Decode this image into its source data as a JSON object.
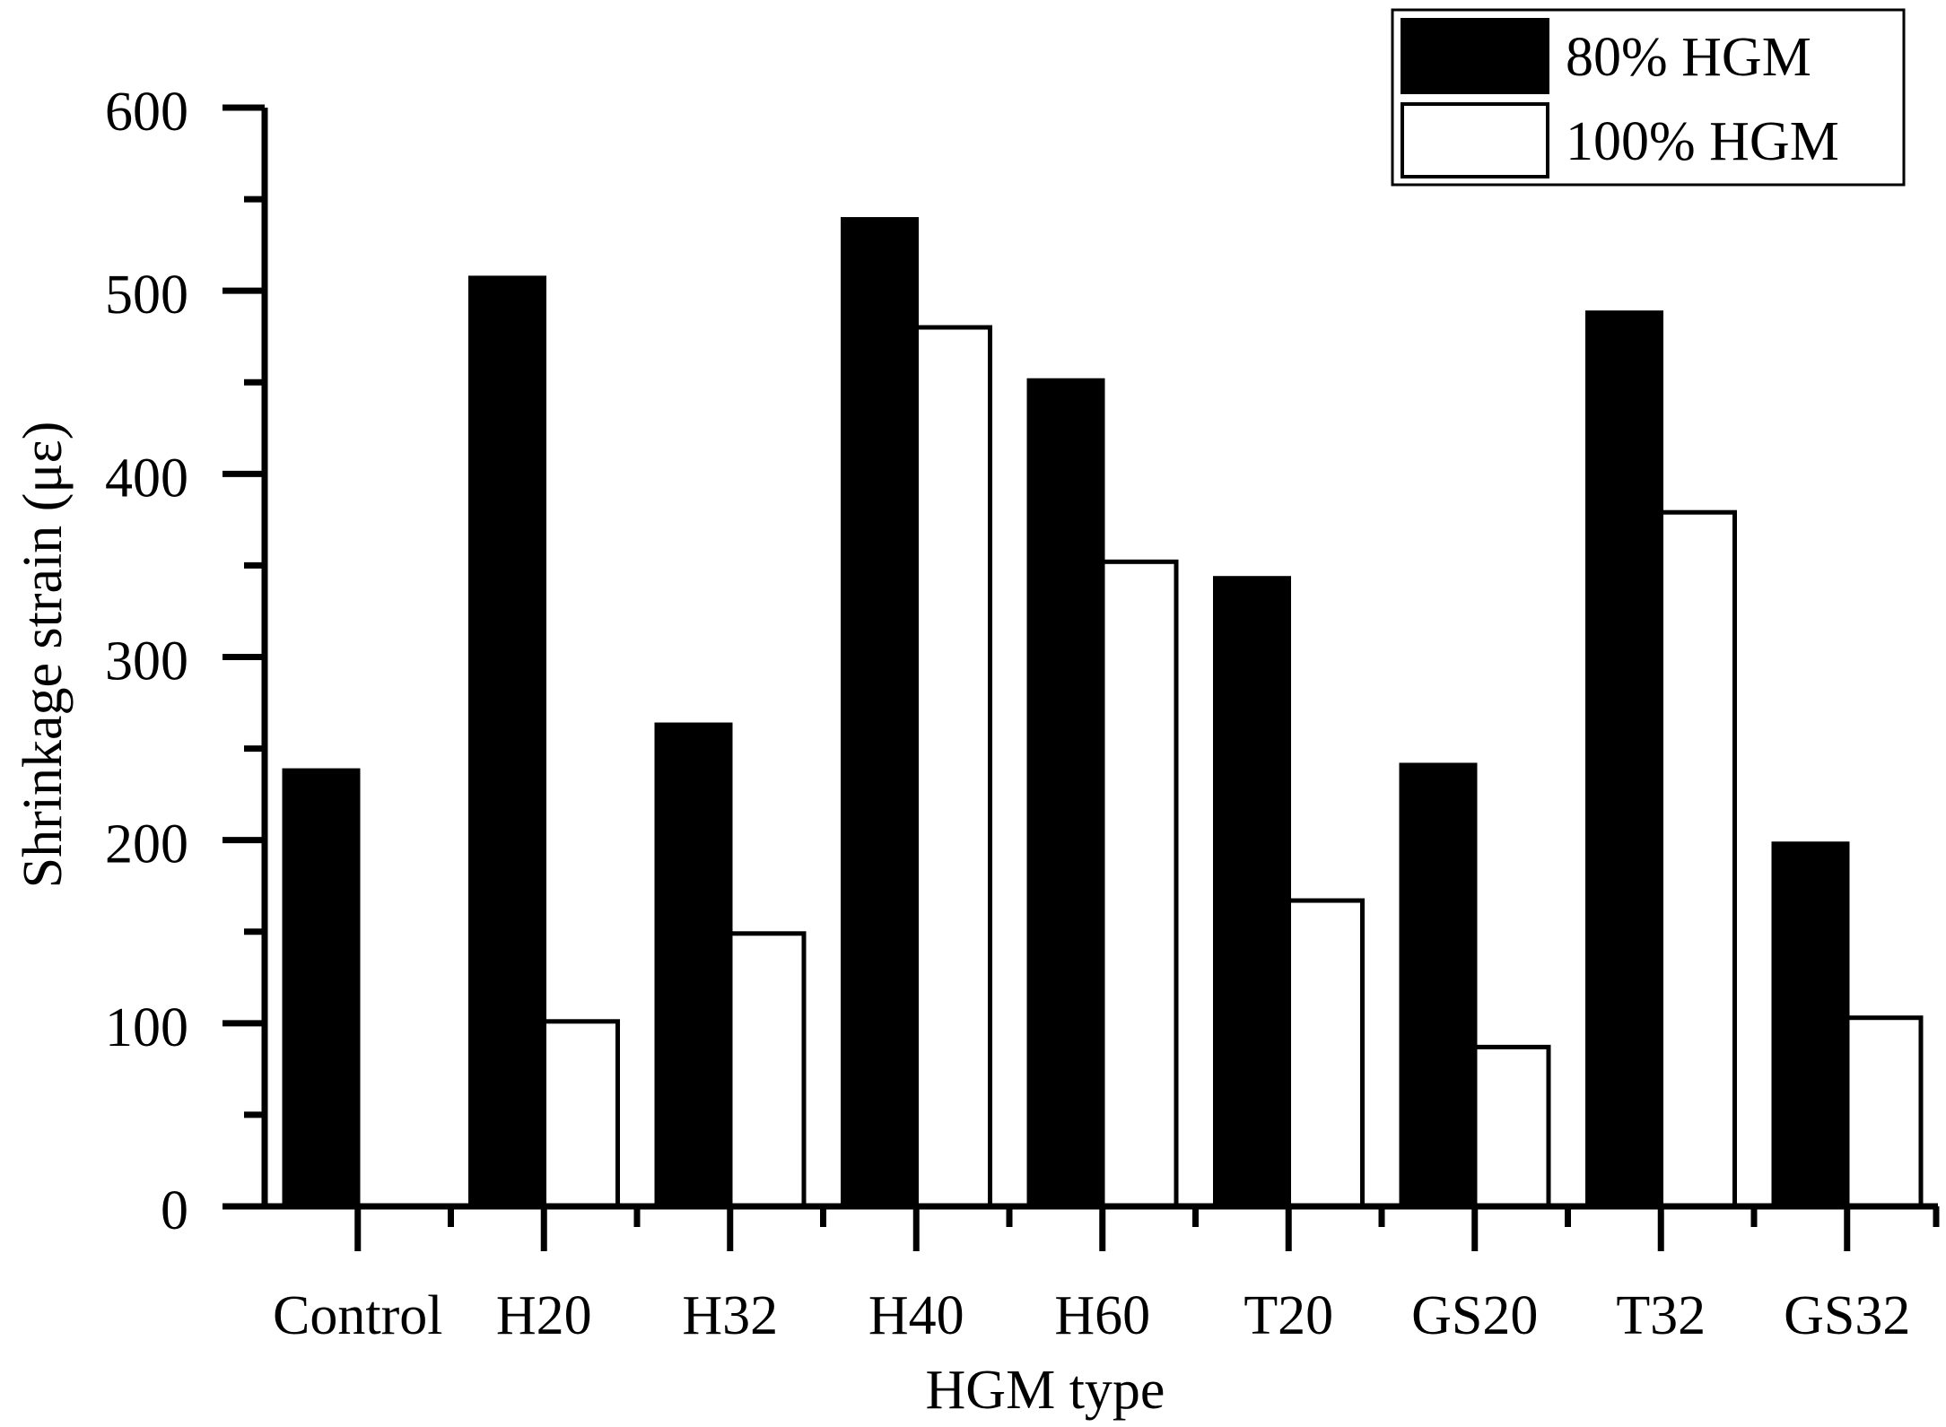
{
  "chart_data": {
    "type": "bar",
    "title": "",
    "xlabel": "HGM type",
    "ylabel": "Shrinkage strain (με)",
    "ylim": [
      0,
      600
    ],
    "yticks": [
      0,
      100,
      200,
      300,
      400,
      500,
      600
    ],
    "ytick_labels": [
      "0",
      "100",
      "200",
      "300",
      "400",
      "500",
      "600"
    ],
    "categories": [
      "Control",
      "H20",
      "H32",
      "H40",
      "H60",
      "T20",
      "GS20",
      "T32",
      "GS32"
    ],
    "series": [
      {
        "name": "80% HGM",
        "fill": "#000000",
        "values": [
          238,
          507,
          263,
          539,
          451,
          343,
          241,
          488,
          198
        ]
      },
      {
        "name": "100% HGM",
        "fill": "#ffffff",
        "values": [
          null,
          101,
          149,
          480,
          352,
          167,
          87,
          379,
          103
        ]
      }
    ],
    "legend_position": "top-right",
    "grid": false
  }
}
